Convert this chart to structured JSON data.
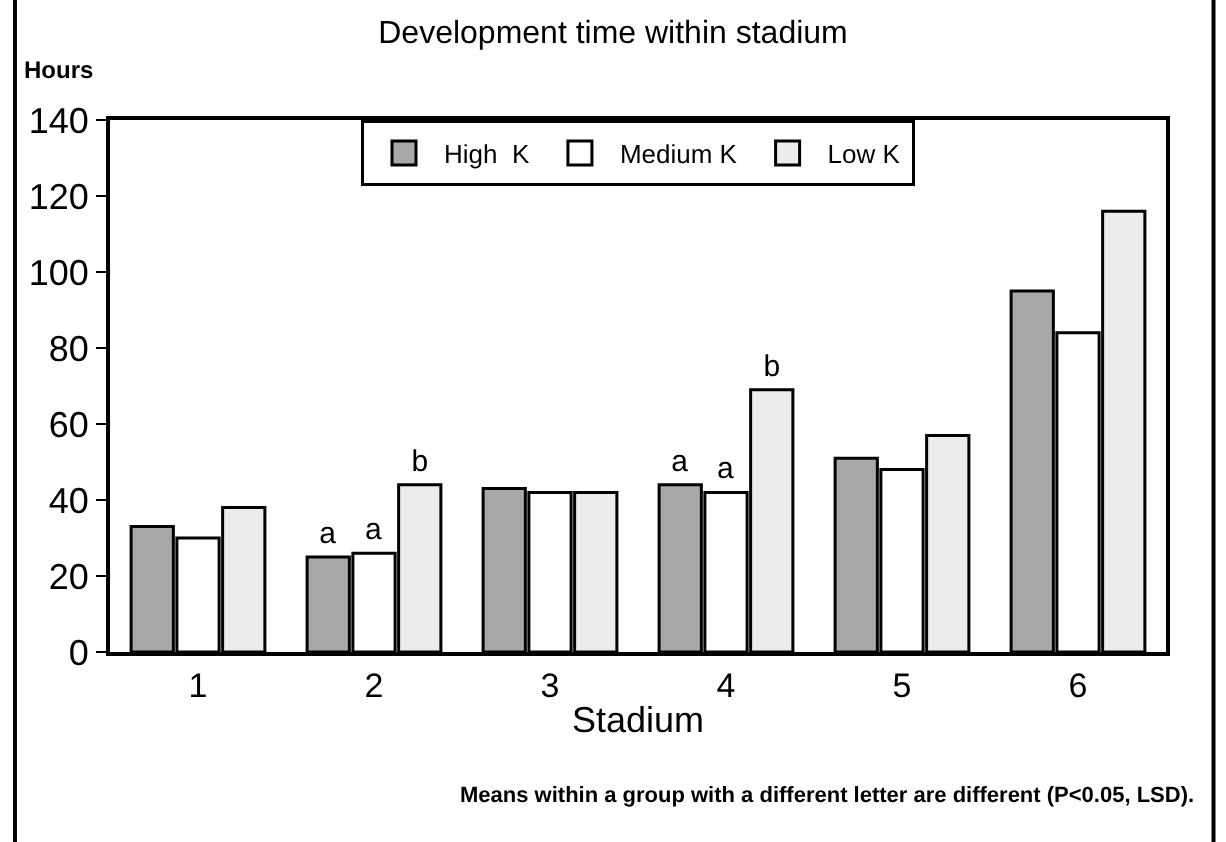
{
  "chart_data": {
    "type": "bar",
    "title": "Development time within stadium",
    "xlabel": "Stadium",
    "ylabel": "Hours",
    "categories": [
      "1",
      "2",
      "3",
      "4",
      "5",
      "6"
    ],
    "series": [
      {
        "name": "High  K",
        "color": "#a8a8a8",
        "values": [
          33,
          25,
          43,
          44,
          51,
          95
        ],
        "value_labels": [
          null,
          "a",
          null,
          "a",
          null,
          null
        ]
      },
      {
        "name": "Medium K",
        "color": "#ffffff",
        "values": [
          30,
          26,
          42,
          42,
          48,
          84
        ],
        "value_labels": [
          null,
          "a",
          null,
          "a",
          null,
          null
        ]
      },
      {
        "name": "Low K",
        "color": "#ececec",
        "values": [
          38,
          44,
          42,
          69,
          57,
          116
        ],
        "value_labels": [
          null,
          "b",
          null,
          "b",
          null,
          null
        ]
      }
    ],
    "ylim": [
      0,
      140
    ],
    "yticks": [
      0,
      20,
      40,
      60,
      80,
      100,
      120,
      140
    ],
    "legend": "top",
    "annotations": [
      "Means within a group with a different letter are different (P<0.05, LSD)."
    ]
  }
}
